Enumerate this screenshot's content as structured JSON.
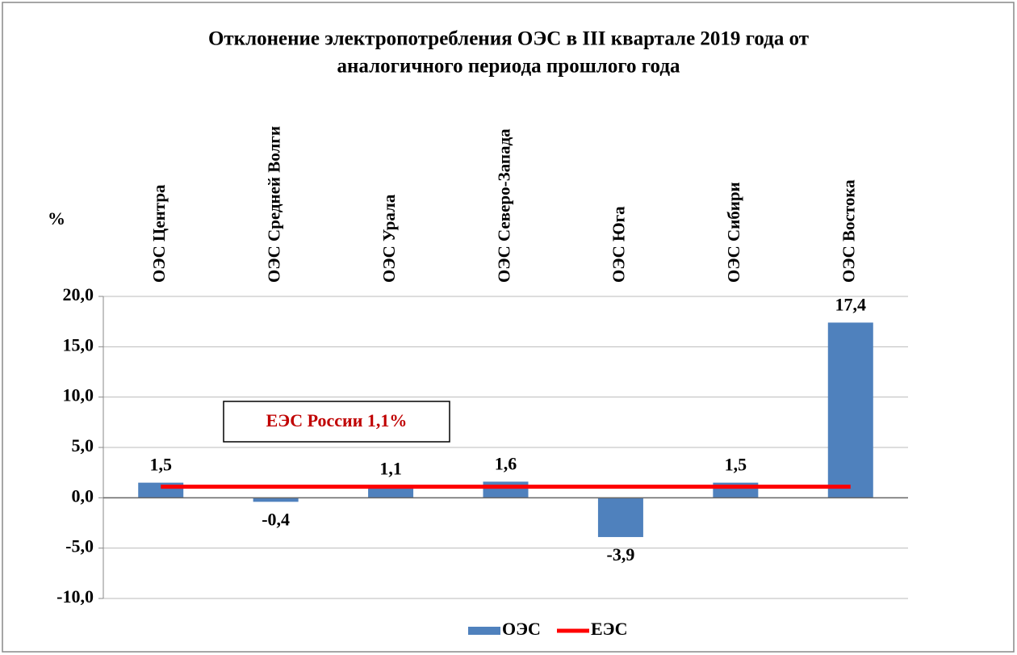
{
  "chart_data": {
    "type": "bar",
    "title": [
      "Отклонение электропотребления ОЭС  в III квартале 2019 года от",
      "аналогичного периода прошлого года"
    ],
    "y_label": "%",
    "categories": [
      "ОЭС Центра",
      "ОЭС Средней Волги",
      "ОЭС Урала",
      "ОЭС Северо-Запада",
      "ОЭС Юга",
      "ОЭС Сибири",
      "ОЭС Востока"
    ],
    "series": [
      {
        "name": "ОЭС",
        "color": "#4f81bd",
        "type": "bar",
        "values": [
          1.5,
          -0.4,
          1.1,
          1.6,
          -3.9,
          1.5,
          17.4
        ],
        "value_labels": [
          "1,5",
          "-0,4",
          "1,1",
          "1,6",
          "-3,9",
          "1,5",
          "17,4"
        ]
      },
      {
        "name": "ЕЭС",
        "color": "#ff0000",
        "type": "line",
        "values": [
          1.1,
          1.1,
          1.1,
          1.1,
          1.1,
          1.1,
          1.1
        ]
      }
    ],
    "annotation": "ЕЭС России 1,1%",
    "annotation_color": "#c00000",
    "ylim": [
      -10,
      20
    ],
    "yticks": [
      {
        "value": -10,
        "label": "-10,0"
      },
      {
        "value": -5,
        "label": "-5,0"
      },
      {
        "value": 0,
        "label": "0,0"
      },
      {
        "value": 5,
        "label": "5,0"
      },
      {
        "value": 10,
        "label": "10,0"
      },
      {
        "value": 15,
        "label": "15,0"
      },
      {
        "value": 20,
        "label": "20,0"
      }
    ],
    "grid": true,
    "legend": "bottom"
  }
}
